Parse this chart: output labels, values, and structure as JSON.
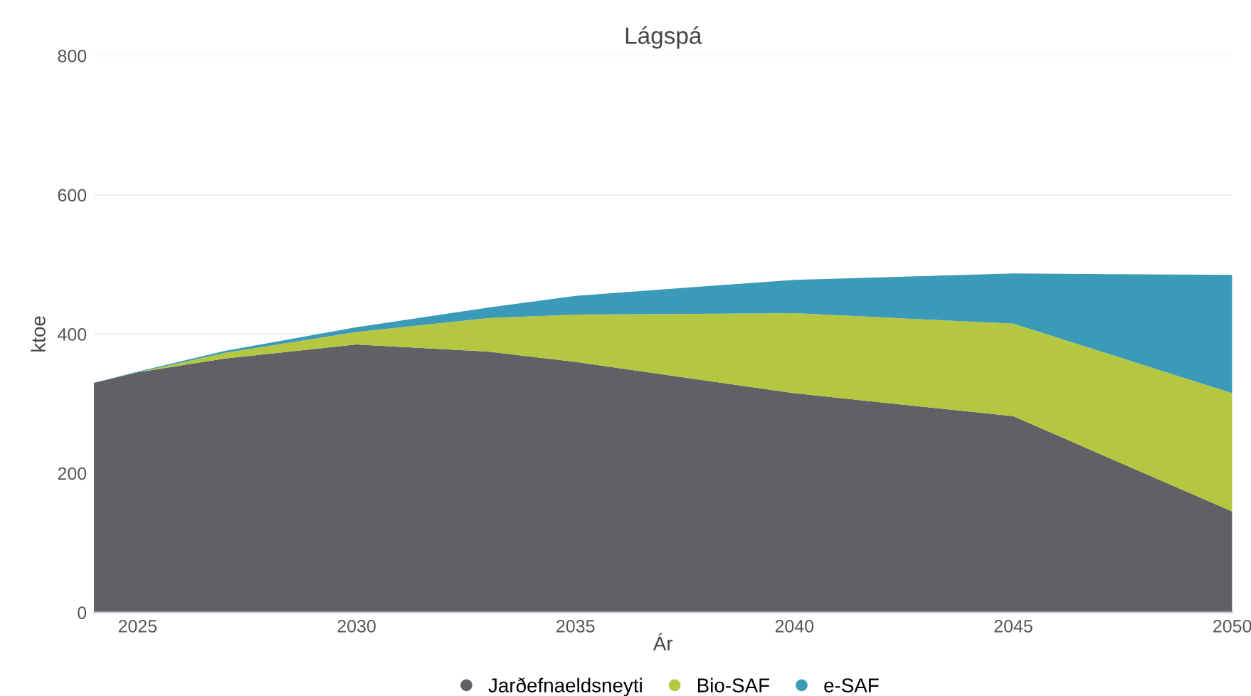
{
  "chart_data": {
    "type": "area",
    "stacked": true,
    "title": "Lágspá",
    "xlabel": "Ár",
    "ylabel": "ktoe",
    "x": [
      2024,
      2025,
      2027,
      2030,
      2033,
      2035,
      2040,
      2045,
      2050
    ],
    "series": [
      {
        "name": "Jarðefnaeldsneyti",
        "color": "#5f6166",
        "values": [
          330,
          345,
          365,
          385,
          375,
          360,
          315,
          282,
          145
        ]
      },
      {
        "name": "Bio-SAF",
        "color": "#b5c641",
        "values": [
          0,
          0,
          8,
          18,
          48,
          68,
          115,
          133,
          170
        ]
      },
      {
        "name": "e-SAF",
        "color": "#3a9ab8",
        "values": [
          0,
          1,
          3,
          7,
          15,
          27,
          48,
          72,
          170
        ]
      }
    ],
    "xlim": [
      2024,
      2050
    ],
    "xticks": [
      2025,
      2030,
      2035,
      2040,
      2045,
      2050
    ],
    "ylim": [
      0,
      800
    ],
    "yticks": [
      0,
      200,
      400,
      600,
      800
    ],
    "grid": "y",
    "legend": "bottom"
  }
}
